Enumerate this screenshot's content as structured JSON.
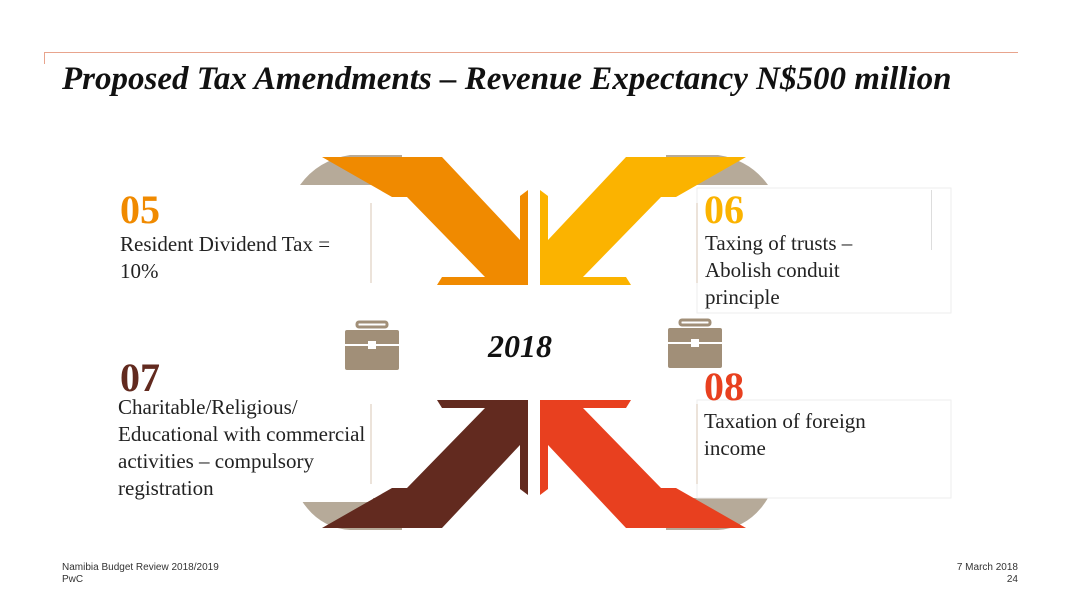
{
  "title": "Proposed Tax Amendments – Revenue Expectancy N$500 million",
  "year": "2018",
  "items": [
    {
      "number": "05",
      "text": "Resident Dividend Tax = 10%",
      "color": "#f08a00"
    },
    {
      "number": "06",
      "text": "Taxing of trusts – Abolish conduit principle",
      "color": "#fbb300"
    },
    {
      "number": "07",
      "text": "Charitable/Religious/ Educational with commercial activities – compulsory registration",
      "color": "#622a1f"
    },
    {
      "number": "08",
      "text": "Taxation of foreign income",
      "color": "#e8401f"
    }
  ],
  "icons": [
    "briefcase-icon",
    "briefcase-icon"
  ],
  "footer": {
    "left_line1": "Namibia Budget Review 2018/2019",
    "left_line2": "PwC",
    "date": "7 March 2018",
    "page": "24"
  },
  "colors": {
    "accent_line": "#e8a48d",
    "curl": "#b6aa99",
    "briefcase": "#a18f78"
  }
}
